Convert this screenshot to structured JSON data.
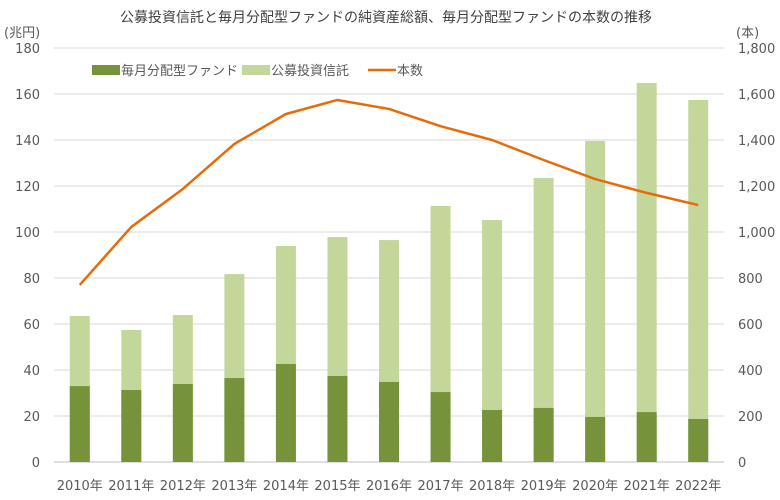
{
  "chart_data": {
    "type": "bar+line",
    "title": "公募投資信託と毎月分配型ファンドの純資産総額、毎月分配型ファンドの本数の推移",
    "ylabel_left": "(兆円)",
    "ylabel_right": "(本)",
    "ylim_left": [
      0,
      180
    ],
    "ylim_right": [
      0,
      1800
    ],
    "yticks_left": [
      "0",
      "20",
      "40",
      "60",
      "80",
      "100",
      "120",
      "140",
      "160",
      "180"
    ],
    "yticks_right": [
      "0",
      "200",
      "400",
      "600",
      "800",
      "1,000",
      "1,200",
      "1,400",
      "1,600",
      "1,800"
    ],
    "grid": true,
    "legend_position": "top-left",
    "categories": [
      "2010年",
      "2011年",
      "2012年",
      "2013年",
      "2014年",
      "2015年",
      "2016年",
      "2017年",
      "2018年",
      "2019年",
      "2020年",
      "2021年",
      "2022年"
    ],
    "series": [
      {
        "name": "毎月分配型ファンド",
        "type": "bar",
        "axis": "left",
        "color": "#76933c",
        "values": [
          33.0,
          31.3,
          33.9,
          36.5,
          42.6,
          37.4,
          34.8,
          30.4,
          22.6,
          23.5,
          19.6,
          21.7,
          18.7
        ]
      },
      {
        "name": "公募投資信託",
        "type": "bar",
        "axis": "left",
        "color": "#c4d79b",
        "values": [
          63.5,
          57.4,
          63.9,
          81.7,
          93.9,
          97.8,
          96.5,
          111.3,
          105.2,
          123.5,
          139.6,
          164.8,
          157.4
        ]
      },
      {
        "name": "本数",
        "type": "line",
        "axis": "right",
        "color": "#e46c0a",
        "values": [
          770,
          1022,
          1187,
          1383,
          1513,
          1574,
          1535,
          1460,
          1400,
          1313,
          1230,
          1170,
          1117
        ]
      }
    ]
  }
}
